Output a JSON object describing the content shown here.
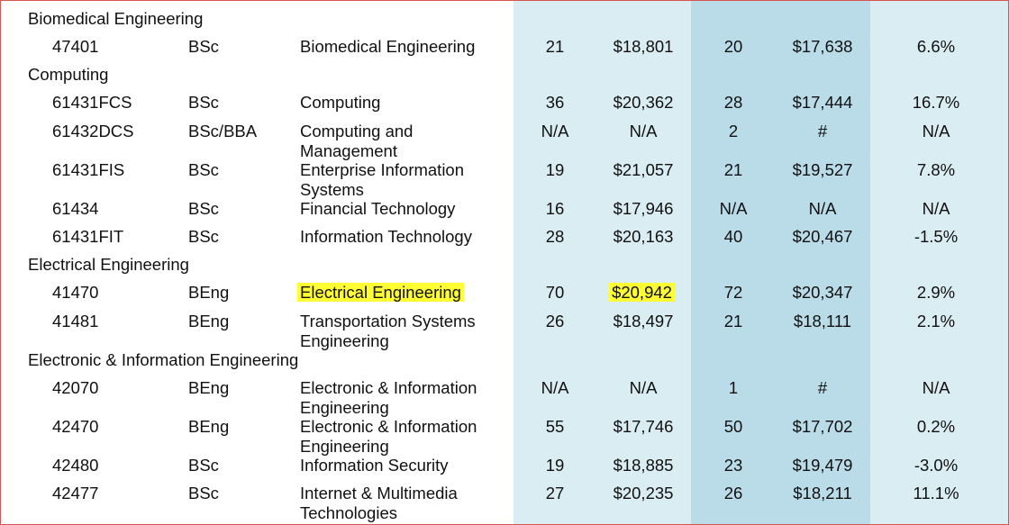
{
  "groups": [
    {
      "name": "Biomedical Engineering",
      "rows": [
        {
          "code": "47401",
          "degree": "BSc",
          "programme": "Biomedical Engineering",
          "v1": "21",
          "v2": "$18,801",
          "v3": "20",
          "v4": "$17,638",
          "v5": "6.6%"
        }
      ]
    },
    {
      "name": "Computing",
      "rows": [
        {
          "code": "61431FCS",
          "degree": "BSc",
          "programme": "Computing",
          "v1": "36",
          "v2": "$20,362",
          "v3": "28",
          "v4": "$17,444",
          "v5": "16.7%"
        },
        {
          "code": "61432DCS",
          "degree": "BSc/BBA",
          "programme": "Computing and Management",
          "v1": "N/A",
          "v2": "N/A",
          "v3": "2",
          "v4": "#",
          "v5": "N/A"
        },
        {
          "code": "61431FIS",
          "degree": "BSc",
          "programme": "Enterprise Information Systems",
          "v1": "19",
          "v2": "$21,057",
          "v3": "21",
          "v4": "$19,527",
          "v5": "7.8%"
        },
        {
          "code": "61434",
          "degree": "BSc",
          "programme": "Financial Technology",
          "v1": "16",
          "v2": "$17,946",
          "v3": "N/A",
          "v4": "N/A",
          "v5": "N/A"
        },
        {
          "code": "61431FIT",
          "degree": "BSc",
          "programme": "Information Technology",
          "v1": "28",
          "v2": "$20,163",
          "v3": "40",
          "v4": "$20,467",
          "v5": "-1.5%"
        }
      ]
    },
    {
      "name": "Electrical Engineering",
      "rows": [
        {
          "code": "41470",
          "degree": "BEng",
          "programme": "Electrical Engineering",
          "v1": "70",
          "v2": "$20,942",
          "v3": "72",
          "v4": "$20,347",
          "v5": "2.9%"
        },
        {
          "code": "41481",
          "degree": "BEng",
          "programme": "Transportation Systems Engineering",
          "v1": "26",
          "v2": "$18,497",
          "v3": "21",
          "v4": "$18,111",
          "v5": "2.1%"
        }
      ]
    },
    {
      "name": "Electronic & Information Engineering",
      "rows": [
        {
          "code": "42070",
          "degree": "BEng",
          "programme": "Electronic & Information Engineering",
          "v1": "N/A",
          "v2": "N/A",
          "v3": "1",
          "v4": "#",
          "v5": "N/A"
        },
        {
          "code": "42470",
          "degree": "BEng",
          "programme": "Electronic & Information Engineering",
          "v1": "55",
          "v2": "$17,746",
          "v3": "50",
          "v4": "$17,702",
          "v5": "0.2%"
        },
        {
          "code": "42480",
          "degree": "BSc",
          "programme": "Information Security",
          "v1": "19",
          "v2": "$18,885",
          "v3": "23",
          "v4": "$19,479",
          "v5": "-3.0%"
        },
        {
          "code": "42477",
          "degree": "BSc",
          "programme": "Internet & Multimedia Technologies",
          "v1": "27",
          "v2": "$20,235",
          "v3": "26",
          "v4": "$18,211",
          "v5": "11.1%"
        }
      ]
    }
  ],
  "highlight_color": "#ffff33",
  "column_colors": {
    "light": "#daedf3",
    "dark": "#b9dce8"
  }
}
